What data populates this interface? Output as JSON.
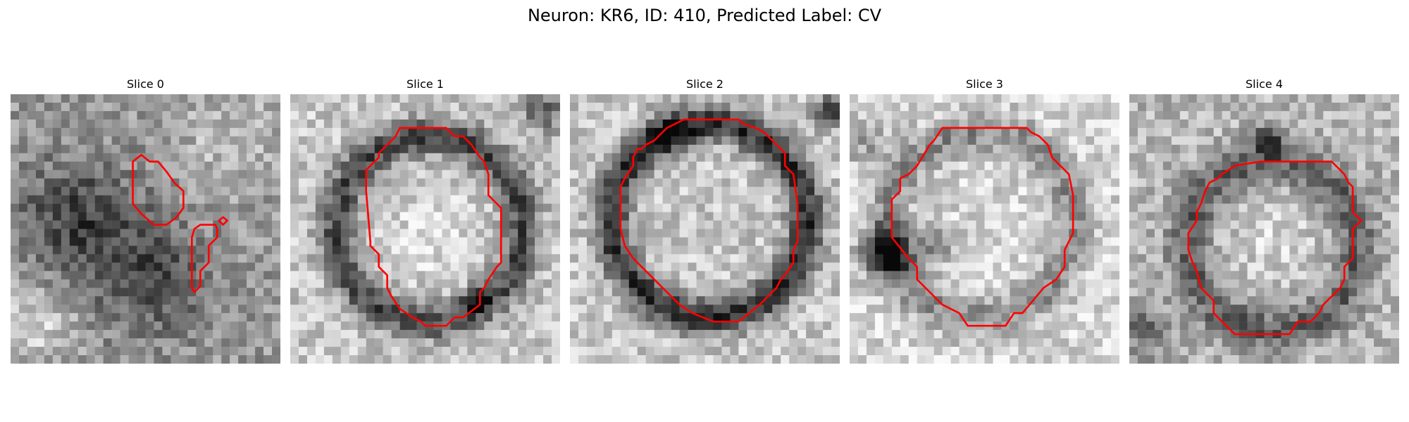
{
  "figure": {
    "title": "Neuron: KR6, ID: 410, Predicted Label: CV"
  },
  "colors": {
    "contour": "#ff0000",
    "background": "#ffffff"
  },
  "grid": {
    "rows": 32,
    "cols": 32
  },
  "slices": [
    {
      "title": "Slice 0",
      "seed": 11,
      "pattern": "slice0"
    },
    {
      "title": "Slice 1",
      "seed": 23,
      "pattern": "ring"
    },
    {
      "title": "Slice 2",
      "seed": 37,
      "pattern": "ring-dark"
    },
    {
      "title": "Slice 3",
      "seed": 51,
      "pattern": "bright-dark-left"
    },
    {
      "title": "Slice 4",
      "seed": 67,
      "pattern": "ring-faint"
    }
  ]
}
